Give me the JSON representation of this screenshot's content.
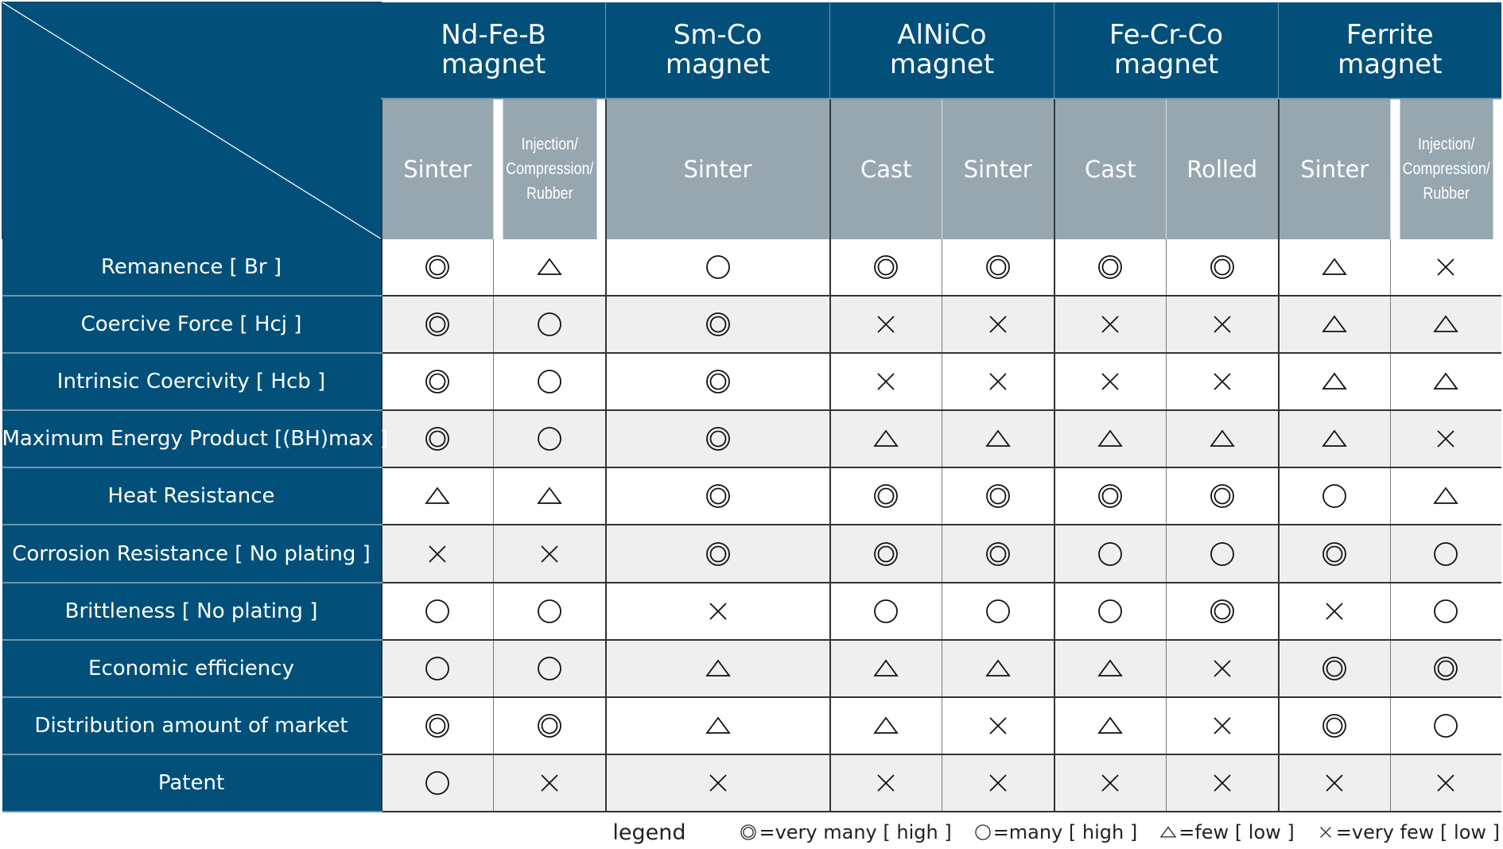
{
  "corner_label": "",
  "groups": [
    {
      "title": "Nd-Fe-B\nmagnet",
      "subs": [
        "Sinter",
        "Injection/\nCompression/\nRubber"
      ]
    },
    {
      "title": "Sm-Co\nmagnet",
      "subs": [
        "Sinter"
      ]
    },
    {
      "title": "AlNiCo\nmagnet",
      "subs": [
        "Cast",
        "Sinter"
      ]
    },
    {
      "title": "Fe-Cr-Co\nmagnet",
      "subs": [
        "Cast",
        "Rolled"
      ]
    },
    {
      "title": "Ferrite\nmagnet",
      "subs": [
        "Sinter",
        "Injection/\nCompression/\nRubber"
      ]
    }
  ],
  "rows": [
    {
      "label": "Remanence [ Br ]",
      "marks": [
        "double-circle",
        "triangle",
        "circle",
        "double-circle",
        "double-circle",
        "double-circle",
        "double-circle",
        "triangle",
        "cross"
      ]
    },
    {
      "label": "Coercive Force [ Hcj ]",
      "marks": [
        "double-circle",
        "circle",
        "double-circle",
        "cross",
        "cross",
        "cross",
        "cross",
        "triangle",
        "triangle"
      ]
    },
    {
      "label": "Intrinsic Coercivity [ Hcb ]",
      "marks": [
        "double-circle",
        "circle",
        "double-circle",
        "cross",
        "cross",
        "cross",
        "cross",
        "triangle",
        "triangle"
      ]
    },
    {
      "label": "Maximum Energy Product [(BH)max ]",
      "marks": [
        "double-circle",
        "circle",
        "double-circle",
        "triangle",
        "triangle",
        "triangle",
        "triangle",
        "triangle",
        "cross"
      ]
    },
    {
      "label": "Heat Resistance",
      "marks": [
        "triangle",
        "triangle",
        "double-circle",
        "double-circle",
        "double-circle",
        "double-circle",
        "double-circle",
        "circle",
        "triangle"
      ]
    },
    {
      "label": "Corrosion Resistance [ No plating ]",
      "marks": [
        "cross",
        "cross",
        "double-circle",
        "double-circle",
        "double-circle",
        "circle",
        "circle",
        "double-circle",
        "circle"
      ]
    },
    {
      "label": "Brittleness [ No plating ]",
      "marks": [
        "circle",
        "circle",
        "cross",
        "circle",
        "circle",
        "circle",
        "double-circle",
        "cross",
        "circle"
      ]
    },
    {
      "label": "Economic efficiency",
      "marks": [
        "circle",
        "circle",
        "triangle",
        "triangle",
        "triangle",
        "triangle",
        "cross",
        "double-circle",
        "double-circle"
      ]
    },
    {
      "label": "Distribution amount of market",
      "marks": [
        "double-circle",
        "double-circle",
        "triangle",
        "triangle",
        "cross",
        "triangle",
        "cross",
        "double-circle",
        "circle"
      ]
    },
    {
      "label": "Patent",
      "marks": [
        "circle",
        "cross",
        "cross",
        "cross",
        "cross",
        "cross",
        "cross",
        "cross",
        "cross"
      ]
    }
  ],
  "legend": {
    "title": "legend",
    "items": [
      {
        "mark": "double-circle",
        "text": "=very many [ high ]"
      },
      {
        "mark": "circle",
        "text": "=many [ high ]"
      },
      {
        "mark": "triangle",
        "text": "=few [ low ]"
      },
      {
        "mark": "cross",
        "text": "=very few [ low ]"
      }
    ]
  },
  "colors": {
    "header_blue": "#02507a",
    "sub_header_gray": "#97a7b0",
    "row_alt": "#efefef"
  }
}
